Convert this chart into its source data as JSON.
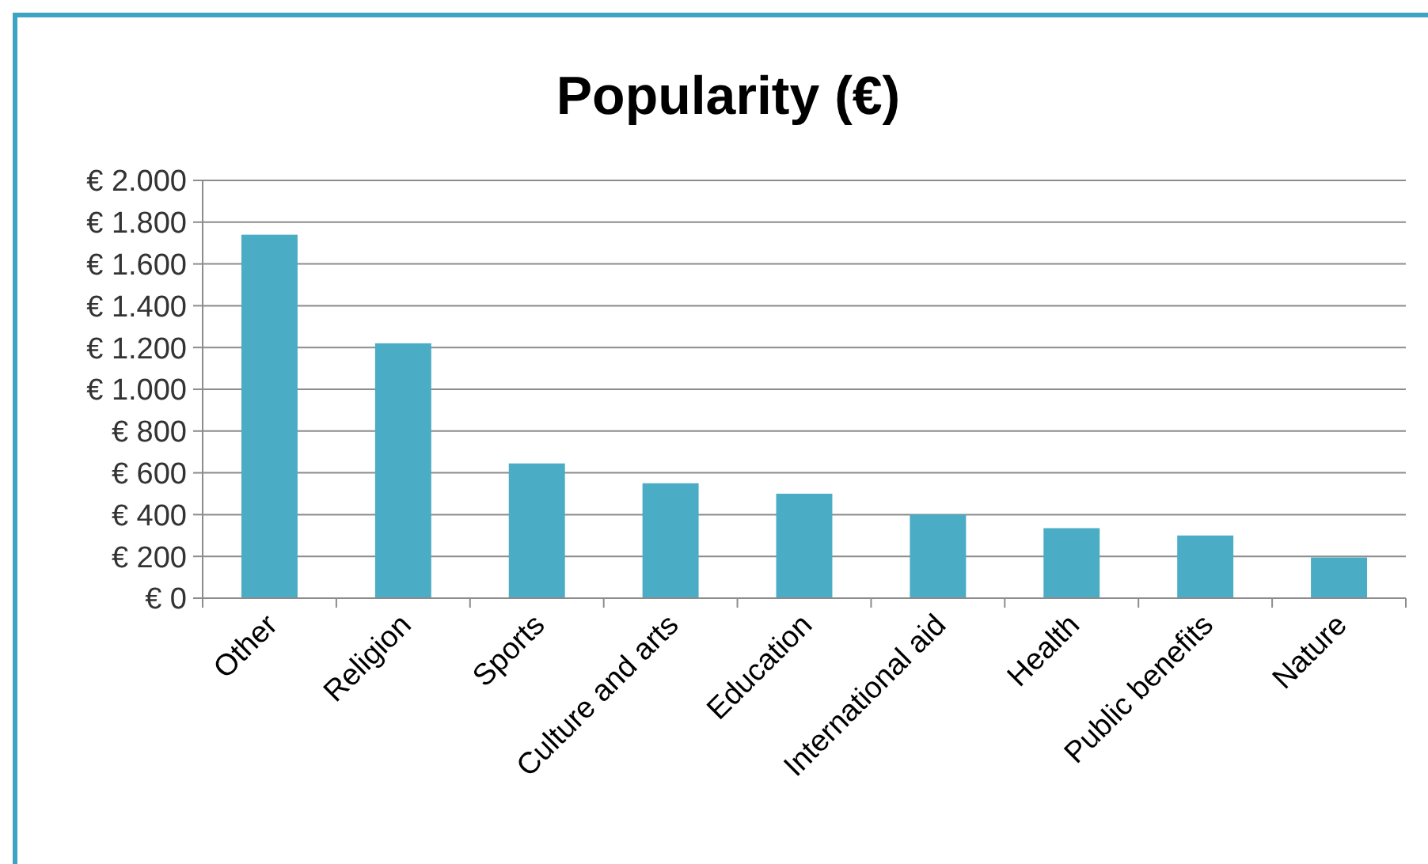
{
  "chart_data": {
    "type": "bar",
    "title": "Popularity (€)",
    "categories": [
      "Other",
      "Religion",
      "Sports",
      "Culture and arts",
      "Education",
      "International aid",
      "Health",
      "Public benefits",
      "Nature"
    ],
    "values": [
      1740,
      1220,
      645,
      550,
      500,
      400,
      335,
      300,
      195
    ],
    "color": "#4bacc6",
    "ylim": [
      0,
      2000
    ],
    "yticks": [
      {
        "value": 0,
        "label": "€ 0"
      },
      {
        "value": 200,
        "label": "€ 200"
      },
      {
        "value": 400,
        "label": "€ 400"
      },
      {
        "value": 600,
        "label": "€ 600"
      },
      {
        "value": 800,
        "label": "€ 800"
      },
      {
        "value": 1000,
        "label": "€ 1.000"
      },
      {
        "value": 1200,
        "label": "€ 1.200"
      },
      {
        "value": 1400,
        "label": "€ 1.400"
      },
      {
        "value": 1600,
        "label": "€ 1.600"
      },
      {
        "value": 1800,
        "label": "€ 1.800"
      },
      {
        "value": 2000,
        "label": "€ 2.000"
      }
    ],
    "grid": "y"
  }
}
